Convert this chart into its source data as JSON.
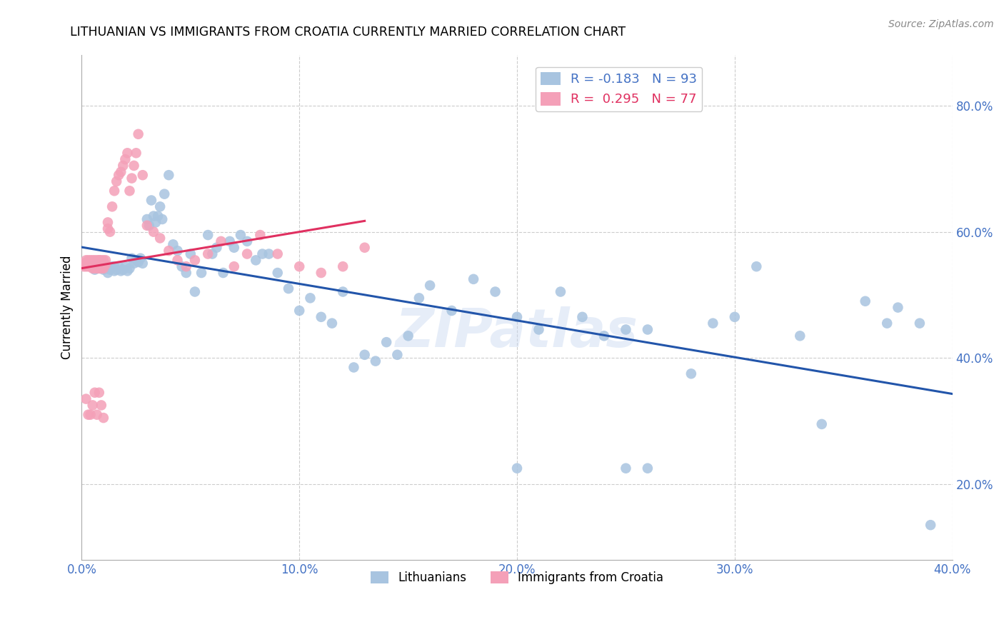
{
  "title": "LITHUANIAN VS IMMIGRANTS FROM CROATIA CURRENTLY MARRIED CORRELATION CHART",
  "source": "Source: ZipAtlas.com",
  "ylabel": "Currently Married",
  "xlim": [
    0.0,
    0.4
  ],
  "ylim": [
    0.08,
    0.88
  ],
  "yticks": [
    0.2,
    0.4,
    0.6,
    0.8
  ],
  "xticks": [
    0.0,
    0.1,
    0.2,
    0.3,
    0.4
  ],
  "ytick_labels": [
    "20.0%",
    "40.0%",
    "60.0%",
    "80.0%"
  ],
  "xtick_labels": [
    "0.0%",
    "10.0%",
    "20.0%",
    "30.0%",
    "40.0%"
  ],
  "legend_labels": [
    "Lithuanians",
    "Immigrants from Croatia"
  ],
  "series1_color": "#a8c4e0",
  "series2_color": "#f4a0b8",
  "line1_color": "#2255aa",
  "line2_color": "#e03060",
  "R1": -0.183,
  "N1": 93,
  "R2": 0.295,
  "N2": 77,
  "watermark": "ZIPatlas",
  "background_color": "#ffffff",
  "grid_color": "#cccccc",
  "series1_x": [
    0.005,
    0.006,
    0.007,
    0.008,
    0.009,
    0.01,
    0.01,
    0.011,
    0.012,
    0.013,
    0.014,
    0.015,
    0.015,
    0.016,
    0.017,
    0.018,
    0.019,
    0.02,
    0.021,
    0.022,
    0.023,
    0.024,
    0.025,
    0.026,
    0.027,
    0.028,
    0.03,
    0.031,
    0.032,
    0.033,
    0.034,
    0.035,
    0.036,
    0.037,
    0.038,
    0.04,
    0.042,
    0.044,
    0.046,
    0.048,
    0.05,
    0.052,
    0.055,
    0.058,
    0.06,
    0.062,
    0.065,
    0.068,
    0.07,
    0.073,
    0.076,
    0.08,
    0.083,
    0.086,
    0.09,
    0.095,
    0.1,
    0.105,
    0.11,
    0.115,
    0.12,
    0.125,
    0.13,
    0.135,
    0.14,
    0.145,
    0.15,
    0.155,
    0.16,
    0.17,
    0.18,
    0.19,
    0.2,
    0.21,
    0.22,
    0.23,
    0.24,
    0.25,
    0.26,
    0.28,
    0.3,
    0.31,
    0.33,
    0.34,
    0.36,
    0.37,
    0.375,
    0.385,
    0.39,
    0.2,
    0.25,
    0.26,
    0.29
  ],
  "series1_y": [
    0.545,
    0.54,
    0.548,
    0.542,
    0.545,
    0.54,
    0.548,
    0.542,
    0.535,
    0.54,
    0.545,
    0.538,
    0.545,
    0.54,
    0.545,
    0.538,
    0.54,
    0.545,
    0.538,
    0.542,
    0.558,
    0.55,
    0.555,
    0.552,
    0.558,
    0.55,
    0.62,
    0.61,
    0.65,
    0.625,
    0.615,
    0.625,
    0.64,
    0.62,
    0.66,
    0.69,
    0.58,
    0.57,
    0.545,
    0.535,
    0.565,
    0.505,
    0.535,
    0.595,
    0.565,
    0.575,
    0.535,
    0.585,
    0.575,
    0.595,
    0.585,
    0.555,
    0.565,
    0.565,
    0.535,
    0.51,
    0.475,
    0.495,
    0.465,
    0.455,
    0.505,
    0.385,
    0.405,
    0.395,
    0.425,
    0.405,
    0.435,
    0.495,
    0.515,
    0.475,
    0.525,
    0.505,
    0.465,
    0.445,
    0.505,
    0.465,
    0.435,
    0.445,
    0.445,
    0.375,
    0.465,
    0.545,
    0.435,
    0.295,
    0.49,
    0.455,
    0.48,
    0.455,
    0.135,
    0.225,
    0.225,
    0.225,
    0.455
  ],
  "series2_x": [
    0.001,
    0.001,
    0.002,
    0.002,
    0.002,
    0.003,
    0.003,
    0.003,
    0.004,
    0.004,
    0.004,
    0.005,
    0.005,
    0.005,
    0.006,
    0.006,
    0.006,
    0.007,
    0.007,
    0.007,
    0.007,
    0.008,
    0.008,
    0.008,
    0.008,
    0.009,
    0.009,
    0.009,
    0.009,
    0.01,
    0.01,
    0.01,
    0.011,
    0.011,
    0.012,
    0.012,
    0.013,
    0.014,
    0.015,
    0.016,
    0.017,
    0.018,
    0.019,
    0.02,
    0.021,
    0.022,
    0.023,
    0.024,
    0.025,
    0.026,
    0.028,
    0.03,
    0.033,
    0.036,
    0.04,
    0.044,
    0.048,
    0.052,
    0.058,
    0.064,
    0.07,
    0.076,
    0.082,
    0.09,
    0.1,
    0.11,
    0.12,
    0.13,
    0.002,
    0.003,
    0.004,
    0.005,
    0.006,
    0.007,
    0.008,
    0.009,
    0.01
  ],
  "series2_y": [
    0.545,
    0.55,
    0.548,
    0.555,
    0.545,
    0.548,
    0.555,
    0.545,
    0.548,
    0.555,
    0.545,
    0.548,
    0.555,
    0.542,
    0.548,
    0.555,
    0.542,
    0.548,
    0.555,
    0.542,
    0.548,
    0.555,
    0.542,
    0.548,
    0.555,
    0.548,
    0.542,
    0.548,
    0.555,
    0.548,
    0.555,
    0.542,
    0.555,
    0.548,
    0.615,
    0.605,
    0.6,
    0.64,
    0.665,
    0.68,
    0.69,
    0.695,
    0.705,
    0.715,
    0.725,
    0.665,
    0.685,
    0.705,
    0.725,
    0.755,
    0.69,
    0.61,
    0.6,
    0.59,
    0.57,
    0.555,
    0.545,
    0.555,
    0.565,
    0.585,
    0.545,
    0.565,
    0.595,
    0.565,
    0.545,
    0.535,
    0.545,
    0.575,
    0.335,
    0.31,
    0.31,
    0.325,
    0.345,
    0.31,
    0.345,
    0.325,
    0.305
  ]
}
